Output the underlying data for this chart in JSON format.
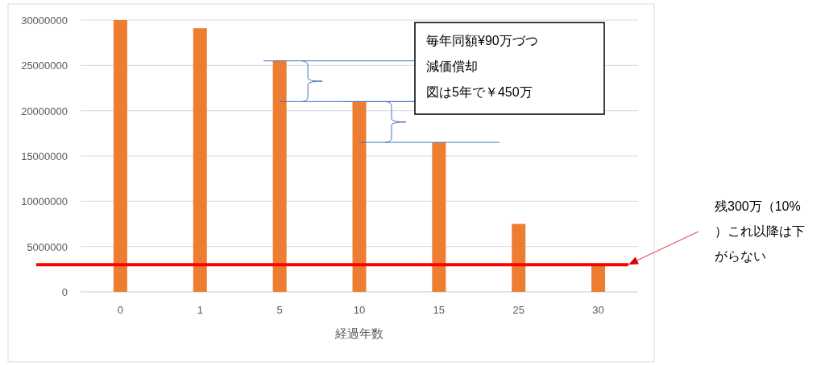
{
  "chart_data": {
    "type": "bar",
    "xlabel": "経過年数",
    "categories": [
      "0",
      "1",
      "5",
      "10",
      "15",
      "25",
      "30"
    ],
    "values": [
      30000000,
      29100000,
      25500000,
      21000000,
      16500000,
      7500000,
      3000000
    ],
    "color": "#ed7d31",
    "ylim": [
      0,
      30000000
    ],
    "yticks": [
      0,
      5000000,
      10000000,
      15000000,
      20000000,
      25000000,
      30000000
    ],
    "grid": "y",
    "ref_lines": [
      {
        "axis": "y",
        "value": 3000000,
        "color": "#ff0000"
      }
    ],
    "annotations": [
      "毎年同額¥90万づつ",
      "減価償却",
      "図は5年で￥450万",
      "残300万（10%）これ以降は下がらない"
    ]
  }
}
